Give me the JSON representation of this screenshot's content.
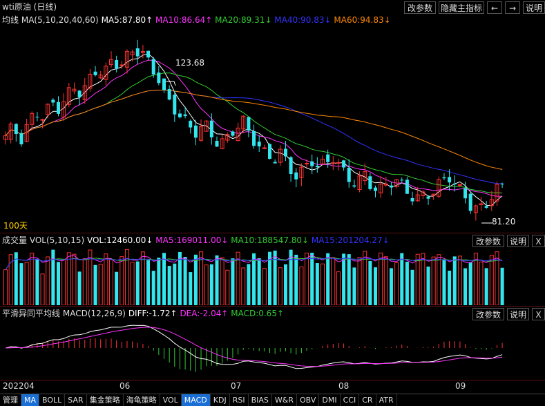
{
  "title": "wti原油 (日线)",
  "top_buttons": [
    "改参数",
    "隐藏主指标",
    "←",
    "→",
    "说明"
  ],
  "ma_line": {
    "label": "均线",
    "params": "MA(5,10,20,40,60)",
    "items": [
      {
        "text": "MA5:87.80↑",
        "color": "#ffffff"
      },
      {
        "text": "MA10:86.64↑",
        "color": "#ff33ff"
      },
      {
        "text": "MA20:89.31↓",
        "color": "#33cc33"
      },
      {
        "text": "MA40:90.83↓",
        "color": "#3333ff"
      },
      {
        "text": "MA60:94.83↓",
        "color": "#ff8800"
      }
    ]
  },
  "price_annotations": {
    "high": "123.68",
    "low": "81.20",
    "period": "100天"
  },
  "volume": {
    "label": "成交量",
    "params": "VOL(5,10,15)",
    "items": [
      {
        "text": "VOL:12460.00↓",
        "color": "#ffffff"
      },
      {
        "text": "MA5:169011.00↓",
        "color": "#ff33ff"
      },
      {
        "text": "MA10:188547.80↓",
        "color": "#33cc33"
      },
      {
        "text": "MA15:201204.27↓",
        "color": "#3333ff"
      }
    ],
    "buttons": [
      "改参数",
      "说明",
      "X"
    ]
  },
  "macd": {
    "label": "平滑异同平均线",
    "params": "MACD(12,26,9)",
    "items": [
      {
        "text": "DIFF:-1.72↑",
        "color": "#ffffff"
      },
      {
        "text": "DEA:-2.04↑",
        "color": "#ff33ff"
      },
      {
        "text": "MACD:0.65↑",
        "color": "#33cc33"
      }
    ],
    "buttons": [
      "改参数",
      "说明",
      "X"
    ]
  },
  "x_axis": [
    "202204",
    "06",
    "07",
    "08",
    "09"
  ],
  "tabs": [
    "管理",
    "MA",
    "BOLL",
    "SAR",
    "集金策略",
    "海龟策略",
    "VOL",
    "MACD",
    "KDJ",
    "RSI",
    "BIAS",
    "W&R",
    "OBV",
    "DMI",
    "CCI",
    "CR",
    "ATR"
  ],
  "tabs_active": [
    "MA",
    "MACD"
  ],
  "colors": {
    "up": "#ff3333",
    "down": "#33e6ee",
    "bg": "#000000",
    "grid": "#5a1010"
  },
  "chart_data": {
    "type": "candlestick",
    "note_range": [
      81.2,
      123.68
    ],
    "close_path": [
      101,
      103,
      100,
      104,
      107,
      106,
      109,
      108,
      111,
      113,
      112,
      115,
      118,
      117,
      120,
      119,
      121,
      123,
      122,
      118,
      116,
      110,
      108,
      106,
      103,
      102,
      104,
      101,
      99,
      100,
      103,
      105,
      101,
      99,
      96,
      95,
      97,
      93,
      91,
      92,
      95,
      93,
      94,
      96,
      92,
      90,
      89,
      91,
      88,
      87,
      89,
      90,
      88,
      86,
      85,
      86,
      87,
      89,
      91,
      88,
      86,
      83,
      82,
      84,
      87,
      88
    ]
  }
}
